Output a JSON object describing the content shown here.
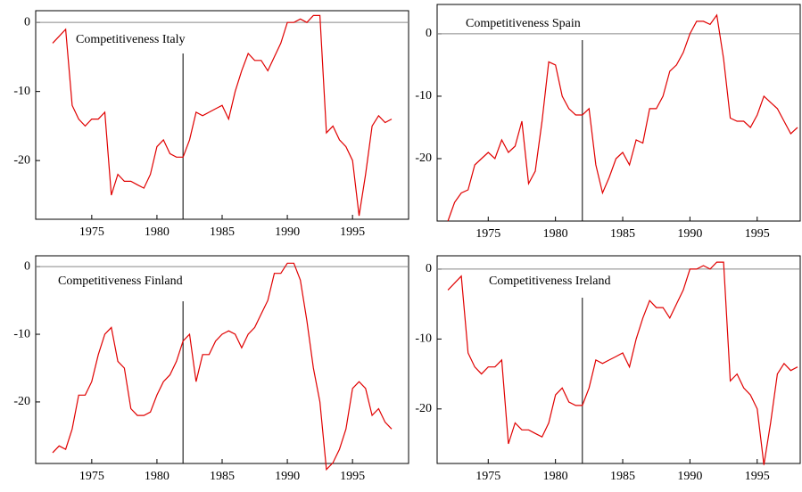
{
  "chart_data": [
    {
      "type": "line",
      "title": "Competitiveness Italy",
      "color": "#e00000",
      "hline": 0,
      "vline": 1982,
      "x": [
        1972,
        1972.5,
        1973,
        1973.5,
        1974,
        1974.5,
        1975,
        1975.5,
        1976,
        1976.5,
        1977,
        1977.5,
        1978,
        1978.5,
        1979,
        1979.5,
        1980,
        1980.5,
        1981,
        1981.5,
        1982,
        1982.5,
        1983,
        1983.5,
        1984,
        1984.5,
        1985,
        1985.5,
        1986,
        1986.5,
        1987,
        1987.5,
        1988,
        1988.5,
        1989,
        1989.5,
        1990,
        1990.5,
        1991,
        1991.5,
        1992,
        1992.5,
        1993,
        1993.5,
        1994,
        1994.5,
        1995,
        1995.5,
        1996,
        1996.5,
        1997,
        1997.5,
        1998
      ],
      "values": [
        -3,
        -2,
        -1,
        -12,
        -14,
        -15,
        -14,
        -14,
        -13,
        -25,
        -22,
        -23,
        -23,
        -23.5,
        -24,
        -22,
        -18,
        -17,
        -19,
        -19.5,
        -19.5,
        -17,
        -13,
        -13.5,
        -13,
        -12.5,
        -12,
        -14,
        -10,
        -7,
        -4.5,
        -5.5,
        -5.5,
        -7,
        -5,
        -3,
        0,
        0,
        0.5,
        0,
        1,
        1,
        -16,
        -15,
        -17,
        -18,
        -20,
        -28,
        -22,
        -15,
        -13.5,
        -14.5,
        -14
      ],
      "xlim": [
        1970.7,
        1999.3
      ],
      "ylim": [
        -28.5,
        1.7
      ],
      "xticks": [
        1975,
        1980,
        1985,
        1990,
        1995
      ],
      "yticks": [
        0,
        -10,
        -20
      ]
    },
    {
      "type": "line",
      "title": "Competitiveness Spain",
      "color": "#e00000",
      "hline": 0,
      "vline": 1982,
      "x": [
        1972,
        1972.5,
        1973,
        1973.5,
        1974,
        1974.5,
        1975,
        1975.5,
        1976,
        1976.5,
        1977,
        1977.5,
        1978,
        1978.5,
        1979,
        1979.5,
        1980,
        1980.5,
        1981,
        1981.5,
        1982,
        1982.5,
        1983,
        1983.5,
        1984,
        1984.5,
        1985,
        1985.5,
        1986,
        1986.5,
        1987,
        1987.5,
        1988,
        1988.5,
        1989,
        1989.5,
        1990,
        1990.5,
        1991,
        1991.5,
        1992,
        1992.5,
        1993,
        1993.5,
        1994,
        1994.5,
        1995,
        1995.5,
        1996,
        1996.5,
        1997,
        1997.5,
        1998
      ],
      "values": [
        -30,
        -27,
        -25.5,
        -25,
        -21,
        -20,
        -19,
        -20,
        -17,
        -19,
        -18,
        -14,
        -24,
        -22,
        -14,
        -4.5,
        -5,
        -10,
        -12,
        -13,
        -13,
        -12,
        -21,
        -25.5,
        -23,
        -20,
        -19,
        -21,
        -17,
        -17.5,
        -12,
        -12,
        -10,
        -6,
        -5,
        -3,
        0,
        2,
        2,
        1.5,
        3,
        -4,
        -13.5,
        -14,
        -14,
        -15,
        -13,
        -10,
        -11,
        -12,
        -14,
        -16,
        -15
      ],
      "xlim": [
        1971.2,
        1998.2
      ],
      "ylim": [
        -30,
        4.7
      ],
      "xticks": [
        1975,
        1980,
        1985,
        1990,
        1995
      ],
      "yticks": [
        0,
        -10,
        -20
      ]
    },
    {
      "type": "line",
      "title": "Competitiveness Finland",
      "color": "#e00000",
      "hline": 0,
      "vline": 1982,
      "x": [
        1972,
        1972.5,
        1973,
        1973.5,
        1974,
        1974.5,
        1975,
        1975.5,
        1976,
        1976.5,
        1977,
        1977.5,
        1978,
        1978.5,
        1979,
        1979.5,
        1980,
        1980.5,
        1981,
        1981.5,
        1982,
        1982.5,
        1983,
        1983.5,
        1984,
        1984.5,
        1985,
        1985.5,
        1986,
        1986.5,
        1987,
        1987.5,
        1988,
        1988.5,
        1989,
        1989.5,
        1990,
        1990.5,
        1991,
        1991.5,
        1992,
        1992.5,
        1993,
        1993.5,
        1994,
        1994.5,
        1995,
        1995.5,
        1996,
        1996.5,
        1997,
        1997.5,
        1998
      ],
      "values": [
        -27.5,
        -26.5,
        -27,
        -24,
        -19,
        -19,
        -17,
        -13,
        -10,
        -9,
        -14,
        -15,
        -21,
        -22,
        -22,
        -21.5,
        -19,
        -17,
        -16,
        -14,
        -11,
        -10,
        -17,
        -13,
        -13,
        -11,
        -10,
        -9.5,
        -10,
        -12,
        -10,
        -9,
        -7,
        -5,
        -1,
        -1,
        0.5,
        0.5,
        -2,
        -8,
        -15,
        -20,
        -30,
        -29,
        -27,
        -24,
        -18,
        -17,
        -18,
        -22,
        -21,
        -23,
        -24
      ],
      "xlim": [
        1970.7,
        1999.3
      ],
      "ylim": [
        -29.1,
        1.6
      ],
      "xticks": [
        1975,
        1980,
        1985,
        1990,
        1995
      ],
      "yticks": [
        0,
        -10,
        -20
      ]
    },
    {
      "type": "line",
      "title": "Competitiveness Ireland",
      "color": "#e00000",
      "hline": 0,
      "vline": 1982,
      "x": [
        1972,
        1972.5,
        1973,
        1973.5,
        1974,
        1974.5,
        1975,
        1975.5,
        1976,
        1976.5,
        1977,
        1977.5,
        1978,
        1978.5,
        1979,
        1979.5,
        1980,
        1980.5,
        1981,
        1981.5,
        1982,
        1982.5,
        1983,
        1983.5,
        1984,
        1984.5,
        1985,
        1985.5,
        1986,
        1986.5,
        1987,
        1987.5,
        1988,
        1988.5,
        1989,
        1989.5,
        1990,
        1990.5,
        1991,
        1991.5,
        1992,
        1992.5,
        1993,
        1993.5,
        1994,
        1994.5,
        1995,
        1995.5,
        1996,
        1996.5,
        1997,
        1997.5,
        1998
      ],
      "values": [
        -3,
        -2,
        -1,
        -12,
        -14,
        -15,
        -14,
        -14,
        -13,
        -25,
        -22,
        -23,
        -23,
        -23.5,
        -24,
        -22,
        -18,
        -17,
        -19,
        -19.5,
        -19.5,
        -17,
        -13,
        -13.5,
        -13,
        -12.5,
        -12,
        -14,
        -10,
        -7,
        -4.5,
        -5.5,
        -5.5,
        -7,
        -5,
        -3,
        0,
        0,
        0.5,
        0,
        1,
        1,
        -16,
        -15,
        -17,
        -18,
        -20,
        -28,
        -22,
        -15,
        -13.5,
        -14.5,
        -14
      ],
      "xlim": [
        1971.2,
        1998.2
      ],
      "ylim": [
        -27.8,
        1.9
      ],
      "xticks": [
        1975,
        1980,
        1985,
        1990,
        1995
      ],
      "yticks": [
        0,
        -10,
        -20
      ]
    }
  ]
}
